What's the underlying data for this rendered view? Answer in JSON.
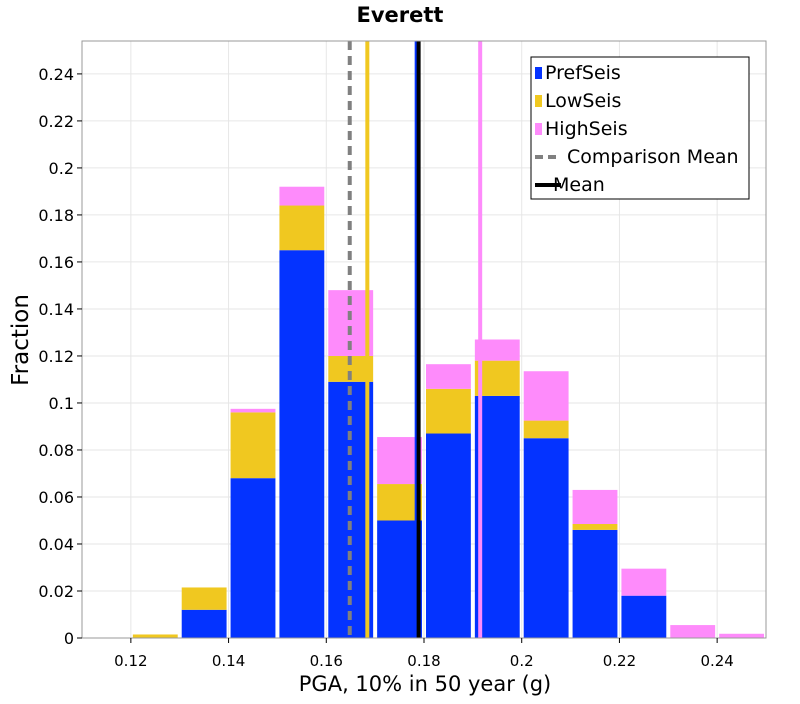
{
  "chart_data": {
    "type": "bar",
    "stacked": true,
    "title": "Everett",
    "xlabel": "PGA, 10% in 50 year (g)",
    "ylabel": "Fraction",
    "xlim": [
      0.11,
      0.25
    ],
    "ylim": [
      0,
      0.254
    ],
    "x_ticks": [
      0.12,
      0.14,
      0.16,
      0.18,
      0.2,
      0.22,
      0.24
    ],
    "x_tick_labels": [
      "0.12",
      "0.14",
      "0.16",
      "0.18",
      "0.2",
      "0.22",
      "0.24"
    ],
    "y_ticks": [
      0,
      0.02,
      0.04,
      0.06,
      0.08,
      0.1,
      0.12,
      0.14,
      0.16,
      0.18,
      0.2,
      0.22,
      0.24
    ],
    "y_tick_labels": [
      "0",
      "0.02",
      "0.04",
      "0.06",
      "0.08",
      "0.1",
      "0.12",
      "0.14",
      "0.16",
      "0.18",
      "0.2",
      "0.22",
      "0.24"
    ],
    "grid": true,
    "legend_position": "top-right",
    "bin_width": 0.01,
    "bin_starts": [
      0.11,
      0.12,
      0.13,
      0.14,
      0.15,
      0.16,
      0.17,
      0.18,
      0.19,
      0.2,
      0.21,
      0.22,
      0.23,
      0.24
    ],
    "series": [
      {
        "name": "PrefSeis",
        "color": "#0433ff",
        "values": [
          0,
          0,
          0.012,
          0.068,
          0.165,
          0.109,
          0.05,
          0.087,
          0.103,
          0.085,
          0.046,
          0.018,
          0,
          0
        ]
      },
      {
        "name": "LowSeis",
        "color": "#f0c820",
        "values": [
          0,
          0.0015,
          0.0095,
          0.028,
          0.019,
          0.011,
          0.0155,
          0.019,
          0.015,
          0.0075,
          0.0025,
          0,
          0,
          0
        ]
      },
      {
        "name": "HighSeis",
        "color": "#fe8bfb",
        "values": [
          0,
          0,
          0,
          0.0015,
          0.008,
          0.028,
          0.02,
          0.0105,
          0.009,
          0.021,
          0.0145,
          0.0115,
          0.0055,
          0.0018
        ]
      }
    ],
    "vertical_lines": [
      {
        "name": "PrefSeis mean",
        "x": 0.1785,
        "color": "#0433ff",
        "style": "solid",
        "in_legend": false
      },
      {
        "name": "LowSeis mean",
        "x": 0.1684,
        "color": "#f0c820",
        "style": "solid",
        "in_legend": false
      },
      {
        "name": "HighSeis mean",
        "x": 0.1915,
        "color": "#fe8bfb",
        "style": "solid",
        "in_legend": false
      },
      {
        "name": "Comparison Mean",
        "x": 0.1648,
        "color": "#808080",
        "style": "dashed",
        "in_legend": true
      },
      {
        "name": "Mean",
        "x": 0.1789,
        "color": "#000000",
        "style": "solid",
        "in_legend": true
      }
    ],
    "legend": [
      {
        "label": "PrefSeis",
        "kind": "patch",
        "color": "#0433ff"
      },
      {
        "label": "LowSeis",
        "kind": "patch",
        "color": "#f0c820"
      },
      {
        "label": "HighSeis",
        "kind": "patch",
        "color": "#fe8bfb"
      },
      {
        "label": "Comparison Mean",
        "kind": "dashed-line",
        "color": "#808080"
      },
      {
        "label": "Mean",
        "kind": "line",
        "color": "#000000"
      }
    ]
  }
}
